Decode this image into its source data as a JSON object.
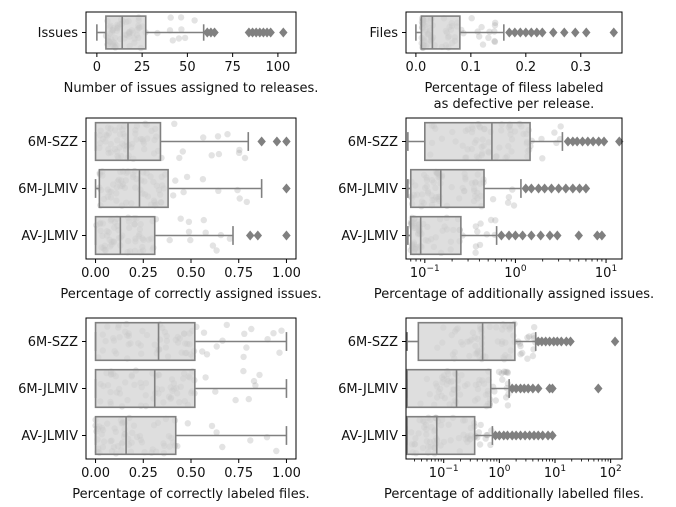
{
  "figure": {
    "type": "box-strip",
    "colors": {
      "box": "#d3d3d3",
      "edge": "#808080",
      "points": "#9a9a9a",
      "axes": "#000000",
      "text": "#000000"
    }
  },
  "chart_data": [
    {
      "type": "box",
      "scale": "linear",
      "xlim": [
        -6,
        110
      ],
      "xticks": [
        0,
        25,
        50,
        75,
        100
      ],
      "xtick_labels": [
        "0",
        "25",
        "50",
        "75",
        "100"
      ],
      "xlabel": [
        "Number of issues assigned to releases."
      ],
      "categories": [
        "Issues"
      ],
      "stats": [
        {
          "q1": 5,
          "median": 14,
          "q3": 27,
          "whisker_low": 0,
          "whisker_high": 59,
          "outliers": [
            61,
            63,
            65,
            84,
            86,
            88,
            90,
            92,
            94,
            96,
            103
          ]
        }
      ]
    },
    {
      "type": "box",
      "scale": "linear",
      "xlim": [
        -0.018,
        0.375
      ],
      "xticks": [
        0.0,
        0.1,
        0.2,
        0.3
      ],
      "xtick_labels": [
        "0.0",
        "0.1",
        "0.2",
        "0.3"
      ],
      "xlabel": [
        "Percentage of filess labeled",
        "as defective per release."
      ],
      "categories": [
        "Files"
      ],
      "stats": [
        {
          "q1": 0.01,
          "median": 0.03,
          "q3": 0.08,
          "whisker_low": 0,
          "whisker_high": 0.16,
          "outliers": [
            0.17,
            0.18,
            0.19,
            0.2,
            0.21,
            0.22,
            0.23,
            0.25,
            0.27,
            0.29,
            0.31,
            0.36
          ]
        }
      ]
    },
    {
      "type": "box",
      "scale": "linear",
      "xlim": [
        -0.05,
        1.05
      ],
      "xticks": [
        0,
        0.25,
        0.5,
        0.75,
        1.0
      ],
      "xtick_labels": [
        "0.00",
        "0.25",
        "0.50",
        "0.75",
        "1.00"
      ],
      "xlabel": [
        "Percentage of correctly assigned issues."
      ],
      "categories": [
        "6M-SZZ",
        "6M-JLMIV",
        "AV-JLMIV"
      ],
      "stats": [
        {
          "q1": 0,
          "median": 0.17,
          "q3": 0.34,
          "whisker_low": 0,
          "whisker_high": 0.8,
          "outliers": [
            0.87,
            0.95,
            1.0
          ]
        },
        {
          "q1": 0.02,
          "median": 0.23,
          "q3": 0.38,
          "whisker_low": 0,
          "whisker_high": 0.87,
          "outliers": [
            1.0
          ]
        },
        {
          "q1": 0,
          "median": 0.13,
          "q3": 0.31,
          "whisker_low": 0,
          "whisker_high": 0.72,
          "outliers": [
            0.81,
            0.85,
            1.0
          ]
        }
      ]
    },
    {
      "type": "box",
      "scale": "log",
      "xlim": [
        0.062,
        15
      ],
      "xticks": [
        0.1,
        1,
        10
      ],
      "xtick_labels": [
        "10",
        "10",
        "10"
      ],
      "xtick_exponents": [
        "−1",
        "0",
        "1"
      ],
      "xlabel": [
        "Percentage of additionally assigned issues."
      ],
      "categories": [
        "6M-SZZ",
        "6M-JLMIV",
        "AV-JLMIV"
      ],
      "stats": [
        {
          "q1": 0.1,
          "median": 0.55,
          "q3": 1.45,
          "whisker_low": 0.065,
          "whisker_high": 3.3,
          "outliers": [
            3.8,
            4.3,
            4.8,
            5.5,
            6.3,
            7.2,
            8.3,
            9.5,
            14
          ]
        },
        {
          "q1": 0.07,
          "median": 0.15,
          "q3": 0.45,
          "whisker_low": 0.065,
          "whisker_high": 1.15,
          "outliers": [
            1.3,
            1.5,
            1.8,
            2.1,
            2.5,
            3.0,
            3.6,
            4.3,
            5.1,
            6.0
          ]
        },
        {
          "q1": 0.07,
          "median": 0.09,
          "q3": 0.25,
          "whisker_low": 0.065,
          "whisker_high": 0.62,
          "outliers": [
            0.7,
            0.85,
            1.0,
            1.2,
            1.5,
            1.9,
            2.4,
            2.9,
            5.0,
            8.0,
            9.0
          ]
        }
      ]
    },
    {
      "type": "box",
      "scale": "linear",
      "xlim": [
        -0.05,
        1.05
      ],
      "xticks": [
        0,
        0.25,
        0.5,
        0.75,
        1.0
      ],
      "xtick_labels": [
        "0.00",
        "0.25",
        "0.50",
        "0.75",
        "1.00"
      ],
      "xlabel": [
        "Percentage of correctly labeled files."
      ],
      "categories": [
        "6M-SZZ",
        "6M-JLMIV",
        "AV-JLMIV"
      ],
      "stats": [
        {
          "q1": 0,
          "median": 0.33,
          "q3": 0.52,
          "whisker_low": 0,
          "whisker_high": 1.0,
          "outliers": []
        },
        {
          "q1": 0,
          "median": 0.31,
          "q3": 0.52,
          "whisker_low": 0,
          "whisker_high": 1.0,
          "outliers": []
        },
        {
          "q1": 0,
          "median": 0.16,
          "q3": 0.42,
          "whisker_low": 0,
          "whisker_high": 1.0,
          "outliers": []
        }
      ]
    },
    {
      "type": "box",
      "scale": "log",
      "xlim": [
        0.021,
        160
      ],
      "xticks": [
        0.1,
        1,
        10,
        100
      ],
      "xtick_labels": [
        "10",
        "10",
        "10",
        "10"
      ],
      "xtick_exponents": [
        "−1",
        "0",
        "1",
        "2"
      ],
      "xlabel": [
        "Percentage of additionally labelled files."
      ],
      "categories": [
        "6M-SZZ",
        "6M-JLMIV",
        "AV-JLMIV"
      ],
      "stats": [
        {
          "q1": 0.035,
          "median": 0.5,
          "q3": 1.9,
          "whisker_low": 0.022,
          "whisker_high": 4.5,
          "outliers": [
            5,
            5.8,
            6.8,
            8,
            9.5,
            11,
            13,
            16,
            19,
            120
          ]
        },
        {
          "q1": 0.022,
          "median": 0.17,
          "q3": 0.7,
          "whisker_low": 0.022,
          "whisker_high": 1.5,
          "outliers": [
            1.7,
            2.0,
            2.4,
            2.8,
            3.3,
            4.0,
            5.0,
            8.0,
            9.0,
            60
          ]
        },
        {
          "q1": 0.022,
          "median": 0.075,
          "q3": 0.36,
          "whisker_low": 0.022,
          "whisker_high": 0.75,
          "outliers": [
            0.85,
            1.0,
            1.2,
            1.4,
            1.7,
            2.0,
            2.4,
            2.9,
            3.5,
            4.2,
            5.0,
            6.0,
            7.5,
            9.0
          ]
        }
      ]
    }
  ]
}
